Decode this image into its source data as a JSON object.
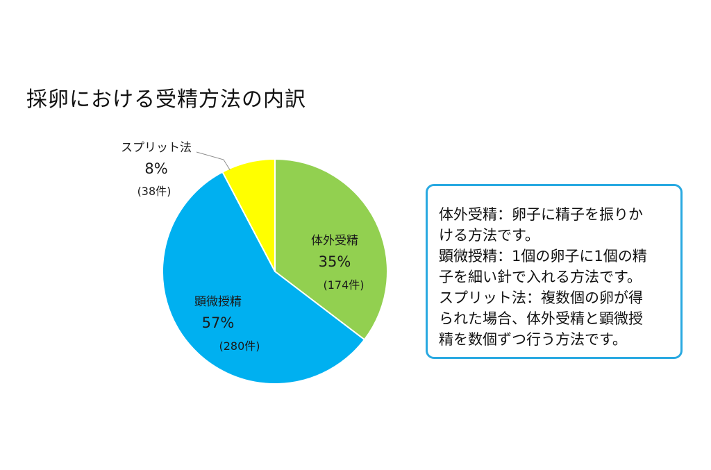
{
  "chart_data": {
    "type": "pie",
    "title": "採卵における受精方法の内訳",
    "slices": [
      {
        "name": "体外受精",
        "value": 174,
        "percent": 35,
        "percent_label": "35%",
        "count_label": "(174件)",
        "color": "#92d050"
      },
      {
        "name": "顕微授精",
        "value": 280,
        "percent": 57,
        "percent_label": "57%",
        "count_label": "(280件)",
        "color": "#00b0f0"
      },
      {
        "name": "スプリット法",
        "value": 38,
        "percent": 8,
        "percent_label": "8%",
        "count_label": "(38件)",
        "color": "#ffff00"
      }
    ]
  },
  "info_box": {
    "border_color": "#29a9e1",
    "lines": [
      "体外受精：卵子に精子を振りか",
      "ける方法です。",
      "顕微授精：1個の卵子に1個の精",
      "子を細い針で入れる方法です。",
      "スプリット法：複数個の卵が得",
      "られた場合、体外受精と顕微授",
      "精を数個ずつ行う方法です。"
    ]
  }
}
